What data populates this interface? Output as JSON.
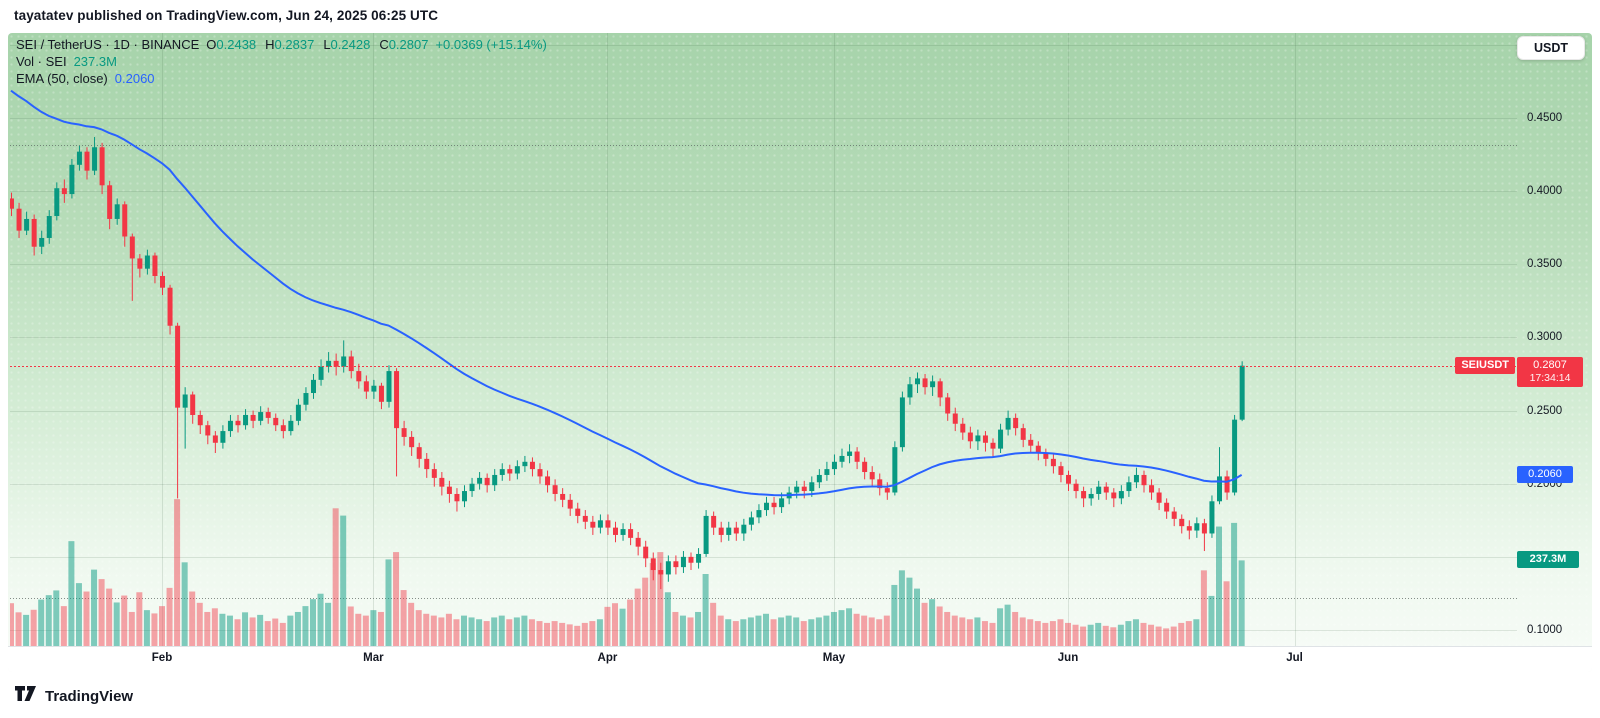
{
  "header": {
    "title": "tayatatev published on TradingView.com, Jun 24, 2025 06:25 UTC"
  },
  "legend": {
    "symbol_line": "SEI / TetherUS · 1D · BINANCE",
    "o_key": "O",
    "o_val": "0.2438",
    "h_key": "H",
    "h_val": "0.2837",
    "l_key": "L",
    "l_val": "0.2428",
    "c_key": "C",
    "c_val": "0.2807",
    "change": "+0.0369 (+15.14%)",
    "vol_label": "Vol · SEI",
    "vol_value": "237.3M",
    "ema_label": "EMA (50, close)",
    "ema_value": "0.2060"
  },
  "currency_button": {
    "label": "USDT"
  },
  "price_labels": {
    "symbol_tag": "SEIUSDT",
    "last_price": "0.2807",
    "countdown": "17:34:14",
    "ema": "0.2060",
    "volume": "237.3M"
  },
  "footer": {
    "brand": "TradingView"
  },
  "colors": {
    "up": "#089981",
    "down": "#F23645",
    "ema_line": "#2962FF",
    "last_price_bg": "#F23645",
    "ema_label_bg": "#2962FF",
    "volume_label_bg": "#089981",
    "text": "#131722",
    "grid": "rgba(55,90,65,0.14)",
    "dotted_level": "rgba(95,105,100,0.75)"
  },
  "chart_data": {
    "type": "candlestick",
    "title": "SEI/TetherUS 1D BINANCE with volume and EMA(50)",
    "x": {
      "start_date": "2025-01-12",
      "interval": "1D",
      "month_ticks": [
        {
          "label": "Feb",
          "day_index": 20
        },
        {
          "label": "Mar",
          "day_index": 48
        },
        {
          "label": "Apr",
          "day_index": 79
        },
        {
          "label": "May",
          "day_index": 109
        },
        {
          "label": "Jun",
          "day_index": 140
        },
        {
          "label": "Jul",
          "day_index": 170
        }
      ]
    },
    "y": {
      "visible_range": [
        0.0884,
        0.5081
      ],
      "grid_values": [
        0.5,
        0.45,
        0.4,
        0.35,
        0.3,
        0.25,
        0.2,
        0.15,
        0.1
      ],
      "axis_labels": [
        {
          "label": "0.4500",
          "value": 0.45
        },
        {
          "label": "0.4000",
          "value": 0.4
        },
        {
          "label": "0.3500",
          "value": 0.35
        },
        {
          "label": "0.3000",
          "value": 0.3
        },
        {
          "label": "0.2500",
          "value": 0.25
        },
        {
          "label": "0.2000",
          "value": 0.2
        },
        {
          "label": "0.1500",
          "value": 0.15
        },
        {
          "label": "0.1000",
          "value": 0.1
        }
      ]
    },
    "last_bar": {
      "open": 0.2438,
      "high": 0.2837,
      "low": 0.2428,
      "close": 0.2807,
      "change": 0.0369,
      "change_pct": 15.14
    },
    "ema": {
      "period": 50,
      "source": "close",
      "initial": 0.472,
      "last": 0.206
    },
    "levels": {
      "last_price": 0.2807,
      "dotted": [
        0.4315,
        0.122
      ]
    },
    "first_open": 0.395,
    "hlc": [
      [
        0.399,
        0.383,
        0.388
      ],
      [
        0.392,
        0.368,
        0.373
      ],
      [
        0.386,
        0.37,
        0.381
      ],
      [
        0.384,
        0.356,
        0.362
      ],
      [
        0.373,
        0.357,
        0.368
      ],
      [
        0.387,
        0.364,
        0.383
      ],
      [
        0.406,
        0.38,
        0.402
      ],
      [
        0.408,
        0.392,
        0.398
      ],
      [
        0.422,
        0.395,
        0.418
      ],
      [
        0.431,
        0.414,
        0.427
      ],
      [
        0.43,
        0.408,
        0.414
      ],
      [
        0.437,
        0.411,
        0.43
      ],
      [
        0.433,
        0.398,
        0.404
      ],
      [
        0.407,
        0.374,
        0.381
      ],
      [
        0.395,
        0.377,
        0.391
      ],
      [
        0.393,
        0.362,
        0.369
      ],
      [
        0.371,
        0.325,
        0.354
      ],
      [
        0.357,
        0.341,
        0.347
      ],
      [
        0.36,
        0.343,
        0.356
      ],
      [
        0.358,
        0.337,
        0.342
      ],
      [
        0.345,
        0.329,
        0.334
      ],
      [
        0.336,
        0.302,
        0.308
      ],
      [
        0.31,
        0.19,
        0.252
      ],
      [
        0.266,
        0.224,
        0.261
      ],
      [
        0.263,
        0.241,
        0.247
      ],
      [
        0.25,
        0.234,
        0.24
      ],
      [
        0.243,
        0.227,
        0.233
      ],
      [
        0.236,
        0.221,
        0.228
      ],
      [
        0.24,
        0.224,
        0.236
      ],
      [
        0.247,
        0.232,
        0.243
      ],
      [
        0.247,
        0.235,
        0.24
      ],
      [
        0.251,
        0.237,
        0.247
      ],
      [
        0.25,
        0.238,
        0.243
      ],
      [
        0.253,
        0.24,
        0.249
      ],
      [
        0.252,
        0.241,
        0.245
      ],
      [
        0.248,
        0.236,
        0.24
      ],
      [
        0.244,
        0.231,
        0.236
      ],
      [
        0.247,
        0.233,
        0.243
      ],
      [
        0.258,
        0.24,
        0.254
      ],
      [
        0.266,
        0.25,
        0.262
      ],
      [
        0.275,
        0.258,
        0.271
      ],
      [
        0.285,
        0.267,
        0.28
      ],
      [
        0.29,
        0.276,
        0.284
      ],
      [
        0.289,
        0.274,
        0.28
      ],
      [
        0.298,
        0.276,
        0.287
      ],
      [
        0.291,
        0.272,
        0.277
      ],
      [
        0.282,
        0.265,
        0.27
      ],
      [
        0.274,
        0.258,
        0.263
      ],
      [
        0.271,
        0.258,
        0.267
      ],
      [
        0.269,
        0.251,
        0.256
      ],
      [
        0.281,
        0.252,
        0.277
      ],
      [
        0.279,
        0.205,
        0.238
      ],
      [
        0.243,
        0.226,
        0.232
      ],
      [
        0.236,
        0.219,
        0.225
      ],
      [
        0.228,
        0.211,
        0.217
      ],
      [
        0.221,
        0.204,
        0.21
      ],
      [
        0.214,
        0.198,
        0.204
      ],
      [
        0.208,
        0.192,
        0.198
      ],
      [
        0.202,
        0.187,
        0.193
      ],
      [
        0.197,
        0.181,
        0.188
      ],
      [
        0.199,
        0.184,
        0.195
      ],
      [
        0.204,
        0.191,
        0.2
      ],
      [
        0.208,
        0.196,
        0.204
      ],
      [
        0.207,
        0.194,
        0.199
      ],
      [
        0.21,
        0.195,
        0.206
      ],
      [
        0.214,
        0.202,
        0.21
      ],
      [
        0.213,
        0.202,
        0.207
      ],
      [
        0.216,
        0.203,
        0.212
      ],
      [
        0.219,
        0.208,
        0.215
      ],
      [
        0.218,
        0.205,
        0.21
      ],
      [
        0.214,
        0.2,
        0.205
      ],
      [
        0.209,
        0.194,
        0.199
      ],
      [
        0.203,
        0.188,
        0.193
      ],
      [
        0.197,
        0.184,
        0.189
      ],
      [
        0.193,
        0.178,
        0.183
      ],
      [
        0.187,
        0.173,
        0.178
      ],
      [
        0.182,
        0.169,
        0.174
      ],
      [
        0.178,
        0.165,
        0.17
      ],
      [
        0.179,
        0.166,
        0.175
      ],
      [
        0.179,
        0.165,
        0.17
      ],
      [
        0.174,
        0.16,
        0.165
      ],
      [
        0.173,
        0.161,
        0.169
      ],
      [
        0.173,
        0.158,
        0.163
      ],
      [
        0.167,
        0.151,
        0.157
      ],
      [
        0.161,
        0.143,
        0.149
      ],
      [
        0.153,
        0.134,
        0.141
      ],
      [
        0.146,
        0.128,
        0.138
      ],
      [
        0.151,
        0.133,
        0.147
      ],
      [
        0.151,
        0.138,
        0.143
      ],
      [
        0.154,
        0.139,
        0.15
      ],
      [
        0.153,
        0.141,
        0.146
      ],
      [
        0.156,
        0.142,
        0.152
      ],
      [
        0.182,
        0.15,
        0.178
      ],
      [
        0.181,
        0.165,
        0.17
      ],
      [
        0.174,
        0.16,
        0.165
      ],
      [
        0.174,
        0.161,
        0.17
      ],
      [
        0.174,
        0.161,
        0.166
      ],
      [
        0.176,
        0.161,
        0.172
      ],
      [
        0.181,
        0.168,
        0.177
      ],
      [
        0.186,
        0.173,
        0.182
      ],
      [
        0.191,
        0.178,
        0.187
      ],
      [
        0.191,
        0.179,
        0.184
      ],
      [
        0.194,
        0.18,
        0.19
      ],
      [
        0.198,
        0.186,
        0.194
      ],
      [
        0.202,
        0.19,
        0.198
      ],
      [
        0.202,
        0.19,
        0.195
      ],
      [
        0.205,
        0.191,
        0.201
      ],
      [
        0.21,
        0.197,
        0.206
      ],
      [
        0.215,
        0.202,
        0.21
      ],
      [
        0.22,
        0.206,
        0.215
      ],
      [
        0.224,
        0.211,
        0.219
      ],
      [
        0.227,
        0.214,
        0.222
      ],
      [
        0.225,
        0.21,
        0.215
      ],
      [
        0.218,
        0.203,
        0.208
      ],
      [
        0.212,
        0.198,
        0.203
      ],
      [
        0.207,
        0.192,
        0.197
      ],
      [
        0.201,
        0.189,
        0.194
      ],
      [
        0.229,
        0.192,
        0.225
      ],
      [
        0.263,
        0.222,
        0.259
      ],
      [
        0.273,
        0.254,
        0.268
      ],
      [
        0.276,
        0.262,
        0.272
      ],
      [
        0.275,
        0.261,
        0.266
      ],
      [
        0.274,
        0.26,
        0.27
      ],
      [
        0.272,
        0.253,
        0.259
      ],
      [
        0.262,
        0.243,
        0.248
      ],
      [
        0.252,
        0.236,
        0.241
      ],
      [
        0.245,
        0.23,
        0.235
      ],
      [
        0.239,
        0.224,
        0.229
      ],
      [
        0.237,
        0.223,
        0.233
      ],
      [
        0.236,
        0.222,
        0.228
      ],
      [
        0.231,
        0.218,
        0.224
      ],
      [
        0.241,
        0.221,
        0.237
      ],
      [
        0.25,
        0.233,
        0.245
      ],
      [
        0.248,
        0.233,
        0.238
      ],
      [
        0.241,
        0.225,
        0.23
      ],
      [
        0.234,
        0.221,
        0.226
      ],
      [
        0.229,
        0.216,
        0.221
      ],
      [
        0.224,
        0.212,
        0.217
      ],
      [
        0.22,
        0.207,
        0.212
      ],
      [
        0.215,
        0.201,
        0.206
      ],
      [
        0.209,
        0.195,
        0.2
      ],
      [
        0.203,
        0.19,
        0.195
      ],
      [
        0.198,
        0.184,
        0.19
      ],
      [
        0.197,
        0.185,
        0.193
      ],
      [
        0.202,
        0.189,
        0.198
      ],
      [
        0.201,
        0.189,
        0.194
      ],
      [
        0.197,
        0.184,
        0.19
      ],
      [
        0.199,
        0.186,
        0.195
      ],
      [
        0.205,
        0.191,
        0.201
      ],
      [
        0.211,
        0.197,
        0.206
      ],
      [
        0.209,
        0.194,
        0.199
      ],
      [
        0.203,
        0.189,
        0.194
      ],
      [
        0.197,
        0.182,
        0.187
      ],
      [
        0.19,
        0.176,
        0.181
      ],
      [
        0.184,
        0.171,
        0.176
      ],
      [
        0.179,
        0.166,
        0.171
      ],
      [
        0.175,
        0.162,
        0.168
      ],
      [
        0.177,
        0.163,
        0.173
      ],
      [
        0.176,
        0.154,
        0.166
      ],
      [
        0.192,
        0.163,
        0.188
      ],
      [
        0.225,
        0.186,
        0.205
      ],
      [
        0.209,
        0.189,
        0.194
      ],
      [
        0.247,
        0.192,
        0.2438
      ],
      [
        0.2837,
        0.2428,
        0.2807
      ]
    ],
    "volumes_m": [
      120,
      95,
      88,
      102,
      130,
      142,
      155,
      112,
      290,
      175,
      152,
      212,
      186,
      160,
      122,
      141,
      96,
      150,
      101,
      92,
      112,
      162,
      405,
      232,
      152,
      121,
      96,
      106,
      91,
      86,
      76,
      95,
      81,
      88,
      71,
      78,
      66,
      86,
      96,
      112,
      131,
      146,
      121,
      380,
      360,
      111,
      91,
      86,
      101,
      96,
      240,
      260,
      156,
      121,
      101,
      91,
      86,
      81,
      91,
      76,
      86,
      81,
      76,
      71,
      81,
      86,
      76,
      81,
      86,
      76,
      71,
      66,
      71,
      66,
      62,
      58,
      66,
      71,
      76,
      110,
      120,
      105,
      130,
      160,
      190,
      230,
      260,
      150,
      96,
      86,
      81,
      96,
      200,
      121,
      86,
      76,
      71,
      76,
      81,
      86,
      91,
      76,
      81,
      86,
      81,
      71,
      76,
      81,
      86,
      96,
      101,
      106,
      91,
      86,
      81,
      76,
      86,
      170,
      210,
      190,
      160,
      121,
      131,
      111,
      96,
      86,
      81,
      76,
      81,
      71,
      66,
      106,
      116,
      96,
      81,
      76,
      71,
      66,
      71,
      76,
      66,
      61,
      56,
      61,
      66,
      58,
      54,
      61,
      71,
      76,
      66,
      61,
      56,
      51,
      56,
      66,
      71,
      76,
      210,
      140,
      330,
      180,
      340,
      237.3
    ]
  }
}
